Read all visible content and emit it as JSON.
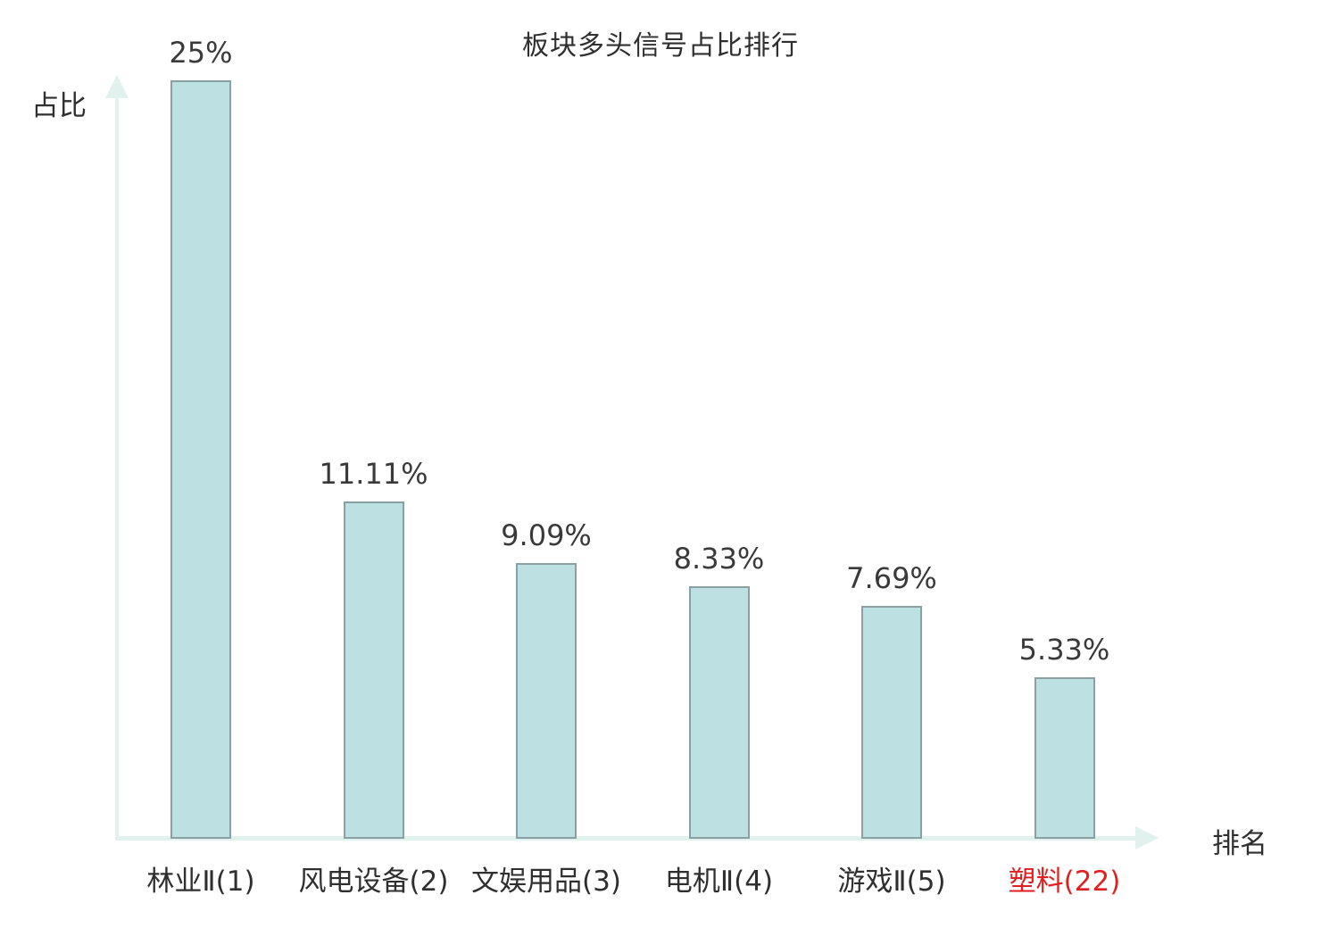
{
  "chart_data": {
    "type": "bar",
    "title": "板块多头信号占比排行",
    "xlabel": "排名",
    "ylabel": "占比",
    "categories": [
      "林业Ⅱ(1)",
      "风电设备(2)",
      "文娱用品(3)",
      "电机Ⅱ(4)",
      "游戏Ⅱ(5)",
      "塑料(22)"
    ],
    "values": [
      25,
      11.11,
      9.09,
      8.33,
      7.69,
      5.33
    ],
    "value_labels": [
      "25%",
      "11.11%",
      "9.09%",
      "8.33%",
      "7.69%",
      "5.33%"
    ],
    "highlight_index": 5,
    "ylim": [
      0,
      25
    ],
    "grid": false,
    "legend": false,
    "colors": {
      "bar_fill": "#bde0e3",
      "bar_border": "#8aa0a2",
      "axis": "#e0f1ee",
      "text": "#2f2f2f",
      "highlight": "#e02020"
    }
  }
}
